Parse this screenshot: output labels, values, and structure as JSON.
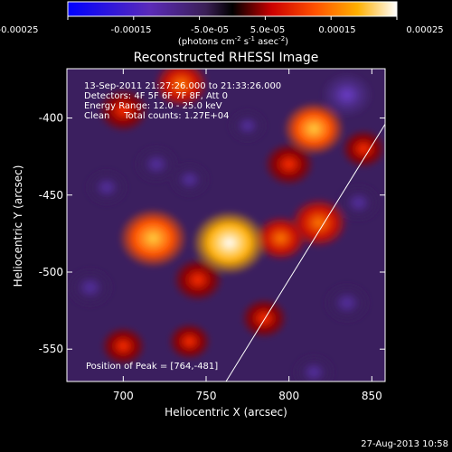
{
  "colorbar": {
    "ticks": [
      "-0.00025",
      "-0.00015",
      "-5.0e-05",
      "5.0e-05",
      "0.00015",
      "0.00025"
    ],
    "tick_values": [
      -0.00025,
      -0.00015,
      -5e-05,
      5e-05,
      0.00015,
      0.00025
    ],
    "range": [
      -0.00025,
      0.00025
    ],
    "unit_label_base": "(photons cm",
    "unit_label_sup1": "-2",
    "unit_label_mid": " s",
    "unit_label_sup2": "-1",
    "unit_label_mid2": " asec",
    "unit_label_sup3": "-2",
    "unit_label_end": ")"
  },
  "chart_data": {
    "type": "heatmap",
    "title": "Reconstructed RHESSI Image",
    "xlabel": "Heliocentric X (arcsec)",
    "ylabel": "Heliocentric Y (arcsec)",
    "xlim": [
      666,
      858
    ],
    "ylim": [
      -571,
      -368
    ],
    "xticks": [
      700,
      750,
      800,
      850
    ],
    "yticks": [
      -400,
      -450,
      -500,
      -550
    ],
    "colormap": "blue-purple-black-red-orange-yellow-white",
    "annotations": [
      "13-Sep-2011 21:27:26.000 to 21:33:26.000",
      "Detectors: 4F 5F 6F 7F 8F, Att 0",
      "Energy Range: 12.0 - 25.0 keV",
      "Clean     Total counts: 1.27E+04"
    ],
    "peak_label": "Position of Peak = [764,-481]",
    "peak": [
      764,
      -481
    ],
    "sources": [
      {
        "x": 764,
        "y": -481,
        "value": 0.00025
      },
      {
        "x": 718,
        "y": -478,
        "value": 0.00022
      },
      {
        "x": 815,
        "y": -407,
        "value": 0.00018
      },
      {
        "x": 818,
        "y": -468,
        "value": 0.00016
      },
      {
        "x": 735,
        "y": -378,
        "value": 0.00014
      },
      {
        "x": 795,
        "y": -478,
        "value": 0.00013
      },
      {
        "x": 845,
        "y": -420,
        "value": 9e-05
      },
      {
        "x": 745,
        "y": -505,
        "value": 0.00012
      },
      {
        "x": 700,
        "y": -395,
        "value": 0.00012
      },
      {
        "x": 800,
        "y": -430,
        "value": 0.00012
      },
      {
        "x": 785,
        "y": -530,
        "value": 0.0001
      },
      {
        "x": 700,
        "y": -548,
        "value": 9e-05
      },
      {
        "x": 740,
        "y": -545,
        "value": 8e-05
      },
      {
        "x": 690,
        "y": -445,
        "value": -8e-05
      },
      {
        "x": 720,
        "y": -430,
        "value": -9e-05
      },
      {
        "x": 680,
        "y": -510,
        "value": -0.0001
      },
      {
        "x": 835,
        "y": -385,
        "value": -0.00012
      },
      {
        "x": 740,
        "y": -440,
        "value": -7e-05
      },
      {
        "x": 842,
        "y": -455,
        "value": -9e-05
      },
      {
        "x": 835,
        "y": -520,
        "value": -0.0001
      },
      {
        "x": 815,
        "y": -565,
        "value": -8e-05
      },
      {
        "x": 775,
        "y": -405,
        "value": -6e-05
      }
    ],
    "limb": [
      [
        762,
        -571
      ],
      [
        858,
        -404
      ]
    ]
  },
  "footer": {
    "timestamp": "27-Aug-2013 10:58"
  }
}
